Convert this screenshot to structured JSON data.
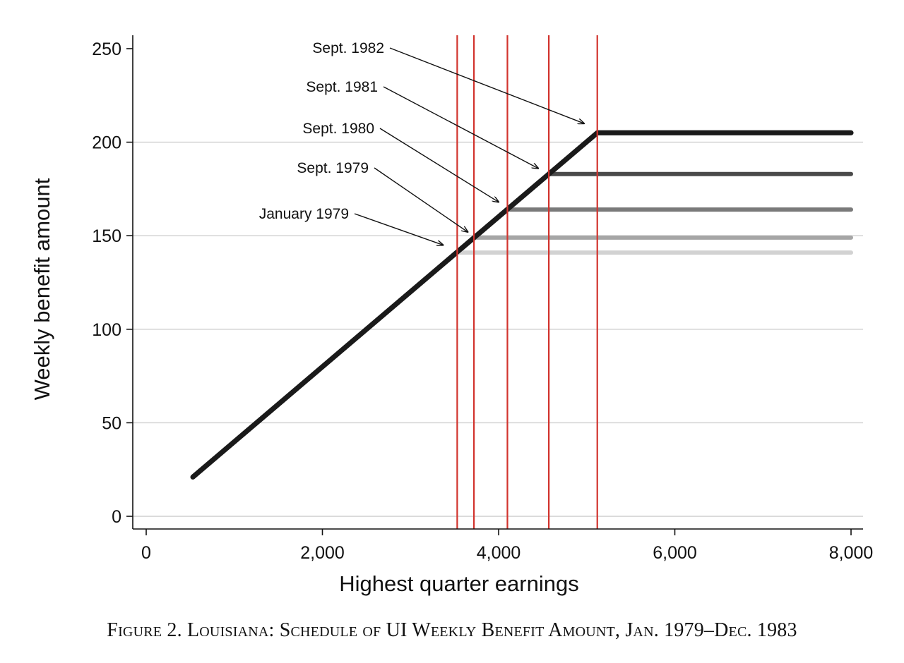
{
  "caption": "Figure 2. Louisiana: Schedule of UI Weekly Benefit Amount, Jan. 1979–Dec. 1983",
  "colors": {
    "reference_line": "#d2342e",
    "grid": "#cfcfcf",
    "axis": "#111111",
    "main_line": "#1a1a1a"
  },
  "chart_data": {
    "type": "line",
    "xlabel": "Highest quarter earnings",
    "ylabel": "Weekly benefit amount",
    "xlim": [
      0,
      8000
    ],
    "ylim": [
      0,
      250
    ],
    "x_ticks": [
      {
        "value": 0,
        "label": "0"
      },
      {
        "value": 2000,
        "label": "2,000"
      },
      {
        "value": 4000,
        "label": "4,000"
      },
      {
        "value": 6000,
        "label": "6,000"
      },
      {
        "value": 8000,
        "label": "8,000"
      }
    ],
    "y_ticks": [
      {
        "value": 0,
        "label": "0"
      },
      {
        "value": 50,
        "label": "50"
      },
      {
        "value": 100,
        "label": "100"
      },
      {
        "value": 150,
        "label": "150"
      },
      {
        "value": 200,
        "label": "200"
      },
      {
        "value": 250,
        "label": "250"
      }
    ],
    "grid": "horizontal",
    "legend": "none",
    "series": [
      {
        "name": "Sept. 1982",
        "color": "#1a1a1a",
        "points": [
          [
            530,
            21
          ],
          [
            5120,
            205
          ],
          [
            8000,
            205
          ]
        ]
      },
      {
        "name": "Sept. 1981",
        "color": "#4a4a4a",
        "points": [
          [
            4570,
            183
          ],
          [
            8000,
            183
          ]
        ]
      },
      {
        "name": "Sept. 1980",
        "color": "#7a7a7a",
        "points": [
          [
            4100,
            164
          ],
          [
            8000,
            164
          ]
        ]
      },
      {
        "name": "Sept. 1979",
        "color": "#a6a6a6",
        "points": [
          [
            3720,
            149
          ],
          [
            8000,
            149
          ]
        ]
      },
      {
        "name": "January 1979",
        "color": "#d2d2d2",
        "points": [
          [
            3530,
            141
          ],
          [
            8000,
            141
          ]
        ]
      }
    ],
    "vertical_lines": [
      3530,
      3720,
      4100,
      4570,
      5120
    ],
    "annotations": [
      {
        "text": "Sept. 1982",
        "target": [
          4970,
          210
        ]
      },
      {
        "text": "Sept. 1981",
        "target": [
          4450,
          186
        ]
      },
      {
        "text": "Sept. 1980",
        "target": [
          4000,
          168
        ]
      },
      {
        "text": "Sept. 1979",
        "target": [
          3650,
          152
        ]
      },
      {
        "text": "January 1979",
        "target": [
          3370,
          145
        ]
      }
    ]
  }
}
